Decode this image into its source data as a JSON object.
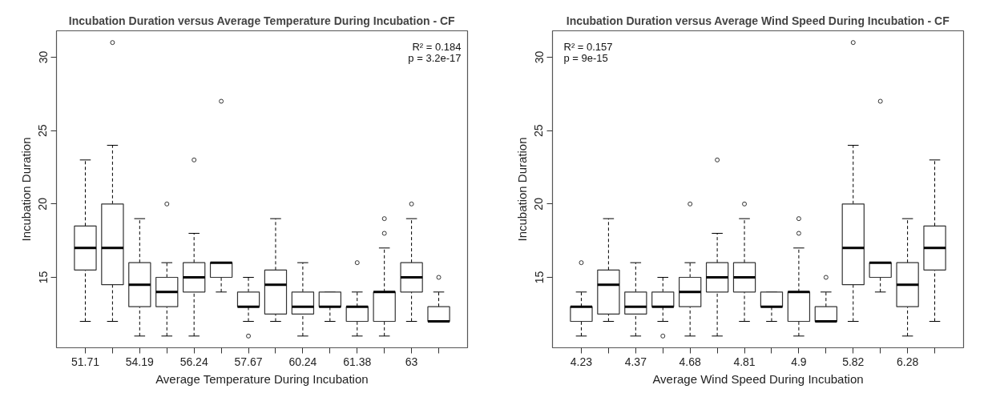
{
  "chart_data": [
    {
      "type": "box",
      "title": "Incubation Duration versus Average Temperature During Incubation - CF",
      "xlabel": "Average Temperature During Incubation",
      "ylabel": "Incubation Duration",
      "categories": [
        "51.71",
        null,
        "54.19",
        null,
        "56.24",
        null,
        "57.67",
        null,
        "60.24",
        null,
        "61.38",
        null,
        "63",
        null
      ],
      "boxes": [
        {
          "low": 12,
          "q1": 15.5,
          "median": 17,
          "q3": 18.5,
          "high": 23
        },
        {
          "low": 12,
          "q1": 14.5,
          "median": 17,
          "q3": 20,
          "high": 24,
          "outliers": [
            31
          ]
        },
        {
          "low": 11,
          "q1": 13,
          "median": 14.5,
          "q3": 16,
          "high": 19
        },
        {
          "low": 11,
          "q1": 13,
          "median": 14,
          "q3": 15,
          "high": 16,
          "outliers": [
            20
          ]
        },
        {
          "low": 11,
          "q1": 14,
          "median": 15,
          "q3": 16,
          "high": 18,
          "outliers": [
            23
          ]
        },
        {
          "low": 14,
          "q1": 15,
          "median": 16,
          "q3": 16,
          "high": 16,
          "outliers": [
            27
          ]
        },
        {
          "low": 12,
          "q1": 13,
          "median": 13,
          "q3": 14,
          "high": 15,
          "outliers": [
            11
          ]
        },
        {
          "low": 12,
          "q1": 12.5,
          "median": 14.5,
          "q3": 15.5,
          "high": 19
        },
        {
          "low": 11,
          "q1": 12.5,
          "median": 13,
          "q3": 14,
          "high": 16
        },
        {
          "low": 12,
          "q1": 13,
          "median": 13,
          "q3": 14,
          "high": 14
        },
        {
          "low": 11,
          "q1": 12,
          "median": 13,
          "q3": 13,
          "high": 14,
          "outliers": [
            16
          ]
        },
        {
          "low": 11,
          "q1": 12,
          "median": 14,
          "q3": 14,
          "high": 17,
          "outliers": [
            18,
            19
          ]
        },
        {
          "low": 12,
          "q1": 14,
          "median": 15,
          "q3": 16,
          "high": 19,
          "outliers": [
            20
          ]
        },
        {
          "low": 12,
          "q1": 12,
          "median": 12,
          "q3": 13,
          "high": 14,
          "outliers": [
            15
          ]
        }
      ],
      "ylim": [
        10.2,
        31.8
      ],
      "yticks": [
        15,
        20,
        25,
        30
      ],
      "annotations": [
        "R² = 0.184",
        "p = 3.2e-17"
      ]
    },
    {
      "type": "box",
      "title": "Incubation Duration versus Average Wind Speed During Incubation - CF",
      "xlabel": "Average Wind Speed During Incubation",
      "ylabel": "Incubation Duration",
      "categories": [
        "4.23",
        null,
        "4.37",
        null,
        "4.68",
        null,
        "4.81",
        null,
        "4.9",
        null,
        "5.82",
        null,
        "6.28",
        null
      ],
      "boxes": [
        {
          "low": 11,
          "q1": 12,
          "median": 13,
          "q3": 13,
          "high": 14,
          "outliers": [
            16
          ]
        },
        {
          "low": 12,
          "q1": 12.5,
          "median": 14.5,
          "q3": 15.5,
          "high": 19
        },
        {
          "low": 11,
          "q1": 12.5,
          "median": 13,
          "q3": 14,
          "high": 16
        },
        {
          "low": 12,
          "q1": 13,
          "median": 13,
          "q3": 14,
          "high": 15,
          "outliers": [
            11
          ]
        },
        {
          "low": 11,
          "q1": 13,
          "median": 14,
          "q3": 15,
          "high": 16,
          "outliers": [
            20
          ]
        },
        {
          "low": 11,
          "q1": 14,
          "median": 15,
          "q3": 16,
          "high": 18,
          "outliers": [
            23
          ]
        },
        {
          "low": 12,
          "q1": 14,
          "median": 15,
          "q3": 16,
          "high": 19,
          "outliers": [
            20
          ]
        },
        {
          "low": 12,
          "q1": 13,
          "median": 13,
          "q3": 14,
          "high": 14
        },
        {
          "low": 11,
          "q1": 12,
          "median": 14,
          "q3": 14,
          "high": 17,
          "outliers": [
            18,
            19
          ]
        },
        {
          "low": 12,
          "q1": 12,
          "median": 12,
          "q3": 13,
          "high": 14,
          "outliers": [
            15
          ]
        },
        {
          "low": 12,
          "q1": 14.5,
          "median": 17,
          "q3": 20,
          "high": 24,
          "outliers": [
            31
          ]
        },
        {
          "low": 14,
          "q1": 15,
          "median": 16,
          "q3": 16,
          "high": 16,
          "outliers": [
            27
          ]
        },
        {
          "low": 11,
          "q1": 13,
          "median": 14.5,
          "q3": 16,
          "high": 19
        },
        {
          "low": 12,
          "q1": 15.5,
          "median": 17,
          "q3": 18.5,
          "high": 23
        }
      ],
      "ylim": [
        10.2,
        31.8
      ],
      "yticks": [
        15,
        20,
        25,
        30
      ],
      "annotations": [
        "R² = 0.157",
        "p = 9e-15"
      ]
    }
  ]
}
